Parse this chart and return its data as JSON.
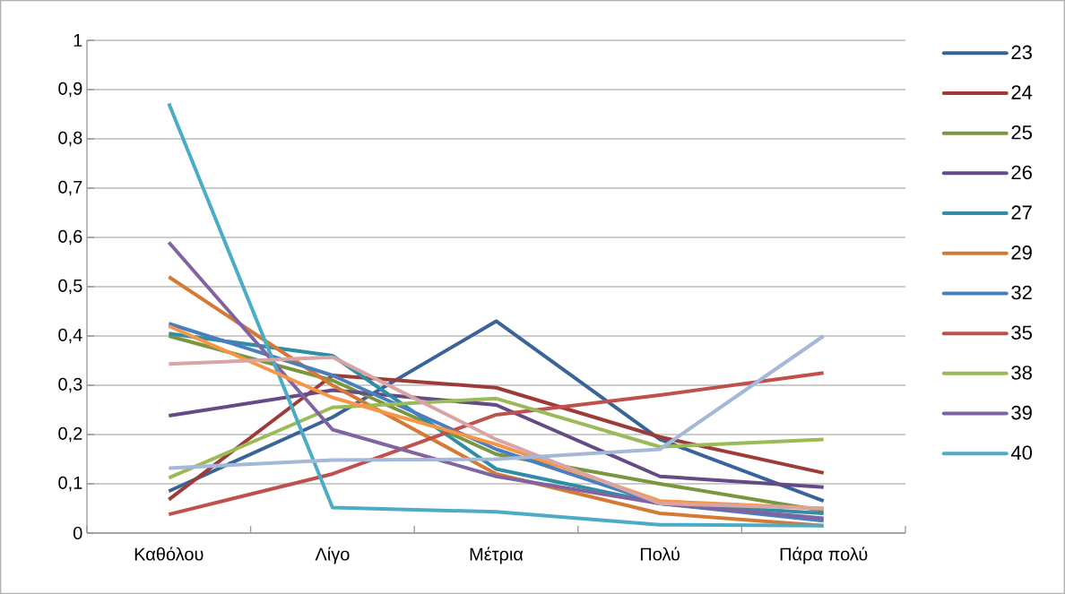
{
  "chart_data": {
    "type": "line",
    "categories": [
      "Καθόλου",
      "Λίγο",
      "Μέτρια",
      "Πολύ",
      "Πάρα πολύ"
    ],
    "ylim": [
      0,
      1
    ],
    "yticks": [
      0,
      {
        "value": 0.1,
        "label": "0,1"
      },
      {
        "value": 0.2,
        "label": "0,2"
      },
      {
        "value": 0.3,
        "label": "0,3"
      },
      {
        "value": 0.4,
        "label": "0,4"
      },
      {
        "value": 0.5,
        "label": "0,5"
      },
      {
        "value": 0.6,
        "label": "0,6"
      },
      {
        "value": 0.7,
        "label": "0,7"
      },
      {
        "value": 0.8,
        "label": "0,8"
      },
      {
        "value": 0.9,
        "label": "0,9"
      },
      1
    ],
    "grid": "y",
    "legend": "right",
    "series": [
      {
        "name": "23",
        "color": "#3a639a",
        "values": [
          0.085,
          0.235,
          0.43,
          0.19,
          0.065
        ]
      },
      {
        "name": "24",
        "color": "#9c3b38",
        "values": [
          0.068,
          0.32,
          0.295,
          0.195,
          0.122
        ]
      },
      {
        "name": "25",
        "color": "#7a963e",
        "values": [
          0.4,
          0.31,
          0.16,
          0.1,
          0.045
        ]
      },
      {
        "name": "26",
        "color": "#654b86",
        "values": [
          0.238,
          0.29,
          0.26,
          0.115,
          0.093
        ]
      },
      {
        "name": "27",
        "color": "#2f8ea5",
        "values": [
          0.405,
          0.36,
          0.13,
          0.06,
          0.04
        ]
      },
      {
        "name": "29",
        "color": "#d57a35",
        "values": [
          0.52,
          0.3,
          0.12,
          0.04,
          0.015
        ]
      },
      {
        "name": "32",
        "color": "#4a7ebf",
        "values": [
          0.425,
          0.32,
          0.17,
          0.06,
          0.025
        ]
      },
      {
        "name": "35",
        "color": "#c0504d",
        "values": [
          0.038,
          0.12,
          0.24,
          0.28,
          0.325
        ]
      },
      {
        "name": "38",
        "color": "#9bbb59",
        "values": [
          0.112,
          0.255,
          0.273,
          0.175,
          0.19
        ]
      },
      {
        "name": "39",
        "color": "#8064a2",
        "values": [
          0.59,
          0.21,
          0.115,
          0.06,
          0.03
        ]
      },
      {
        "name": "40",
        "color": "#4bacc6",
        "values": [
          0.872,
          0.052,
          0.043,
          0.017,
          0.015
        ]
      },
      {
        "color": "#f79646",
        "values": [
          0.42,
          0.275,
          0.18,
          0.065,
          0.05
        ]
      },
      {
        "color": "#d9a5a4",
        "values": [
          0.343,
          0.357,
          0.19,
          0.06,
          0.05
        ]
      },
      {
        "color": "#a5b8d7",
        "values": [
          0.132,
          0.148,
          0.15,
          0.17,
          0.4
        ]
      }
    ]
  }
}
